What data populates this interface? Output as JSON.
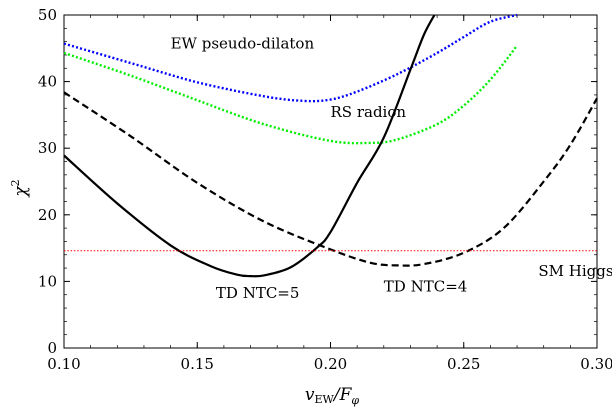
{
  "chart_data": {
    "type": "line",
    "xlabel": "v_EW/F_φ",
    "xlabel_parts": {
      "v": "v",
      "sub": "EW",
      "slash": "/F",
      "phi": "φ"
    },
    "ylabel": "χ²",
    "ylabel_parts": {
      "chi": "χ",
      "sup": "2"
    },
    "xlim": [
      0.1,
      0.3
    ],
    "ylim": [
      0,
      50
    ],
    "xticks": [
      0.1,
      0.15,
      0.2,
      0.25,
      0.3
    ],
    "xtick_labels": [
      "0.10",
      "0.15",
      "0.20",
      "0.25",
      "0.30"
    ],
    "yticks": [
      0,
      10,
      20,
      30,
      40,
      50
    ],
    "ytick_labels": [
      "0",
      "10",
      "20",
      "30",
      "40",
      "50"
    ],
    "grid": false,
    "series": [
      {
        "name": "EW pseudo-dilaton",
        "color": "#0000ff",
        "style": "dotted",
        "x": [
          0.1,
          0.125,
          0.15,
          0.175,
          0.19,
          0.2,
          0.21,
          0.225,
          0.24,
          0.25,
          0.26,
          0.27
        ],
        "y": [
          45.7,
          42.8,
          39.9,
          37.8,
          37.1,
          37.3,
          38.5,
          41.1,
          44.3,
          46.7,
          49.0,
          50.0
        ]
      },
      {
        "name": "RS radion",
        "color": "#00ee00",
        "style": "dotted",
        "x": [
          0.1,
          0.125,
          0.15,
          0.175,
          0.2,
          0.215,
          0.225,
          0.24,
          0.25,
          0.26,
          0.27
        ],
        "y": [
          44.3,
          40.9,
          37.2,
          33.6,
          31.1,
          30.8,
          31.3,
          33.6,
          36.4,
          40.3,
          45.4
        ]
      },
      {
        "name": "TD NTC=5",
        "color": "#000000",
        "style": "solid",
        "x": [
          0.1,
          0.12,
          0.14,
          0.155,
          0.165,
          0.17,
          0.175,
          0.185,
          0.195,
          0.2,
          0.21,
          0.22,
          0.23,
          0.235,
          0.239
        ],
        "y": [
          28.9,
          21.7,
          15.4,
          12.3,
          11.0,
          10.8,
          10.9,
          12.1,
          15.1,
          17.4,
          24.8,
          31.6,
          41.8,
          47.0,
          50.0
        ]
      },
      {
        "name": "TD NTC=4",
        "color": "#000000",
        "style": "dashed",
        "x": [
          0.1,
          0.125,
          0.15,
          0.175,
          0.2,
          0.215,
          0.225,
          0.235,
          0.25,
          0.265,
          0.28,
          0.29,
          0.3
        ],
        "y": [
          38.4,
          31.8,
          24.8,
          19.0,
          14.8,
          12.8,
          12.4,
          12.6,
          14.3,
          18.0,
          25.0,
          30.5,
          37.5
        ]
      },
      {
        "name": "SM Higgs",
        "color": "#ff0000",
        "style": "dotted-thin",
        "x": [
          0.1,
          0.3
        ],
        "y": [
          14.6,
          14.6
        ]
      }
    ],
    "annotations": [
      {
        "text": "EW pseudo-dilaton",
        "x": 0.14,
        "y": 45.0
      },
      {
        "text": "RS radion",
        "x": 0.2,
        "y": 34.7
      },
      {
        "text": "TD NTC=5",
        "x": 0.157,
        "y": 7.5
      },
      {
        "text": "TD NTC=4",
        "x": 0.22,
        "y": 8.5
      },
      {
        "text": "SM Higgs",
        "x": 0.278,
        "y": 10.8
      }
    ]
  }
}
